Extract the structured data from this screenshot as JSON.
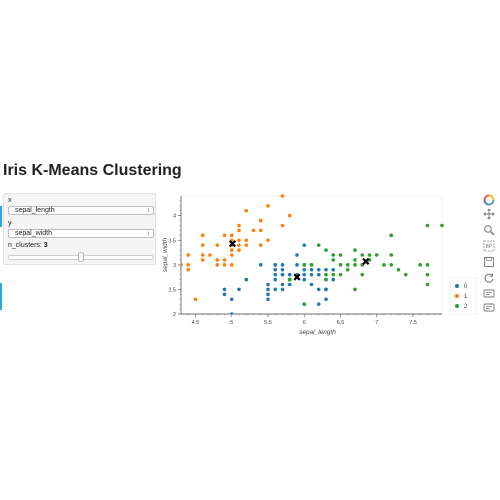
{
  "page": {
    "title": "Iris K-Means Clustering"
  },
  "controls": {
    "x_label": "x",
    "x_value": "sepal_length",
    "y_label": "y",
    "y_value": "sepal_width",
    "n_clusters_label": "n_clusters: ",
    "n_clusters_value": "3",
    "n_clusters_fraction": 0.5
  },
  "toolbar": {
    "icons": [
      "bokeh-logo-icon",
      "pan-icon",
      "zoom-icon",
      "box-zoom-icon",
      "save-icon",
      "reset-icon",
      "hover-icon",
      "hover-icon-2"
    ]
  },
  "colors": {
    "cluster0": "#1f77b4",
    "cluster1": "#ff7f0e",
    "cluster2": "#2ca02c",
    "centroid": "#000000"
  },
  "chart_data": {
    "type": "scatter",
    "xlabel": "sepal_length",
    "ylabel": "sepal_width",
    "xlim": [
      4.3,
      7.9
    ],
    "ylim": [
      2.0,
      4.4
    ],
    "xticks": [
      4.5,
      5,
      5.5,
      6,
      6.5,
      7,
      7.5
    ],
    "yticks": [
      2,
      2.5,
      3,
      3.5,
      4
    ],
    "legend_position": "right",
    "series": [
      {
        "name": "0",
        "color": "#1f77b4",
        "points": [
          [
            4.9,
            2.4
          ],
          [
            4.9,
            2.5
          ],
          [
            5.0,
            2.0
          ],
          [
            5.0,
            2.3
          ],
          [
            5.1,
            2.5
          ],
          [
            5.2,
            2.7
          ],
          [
            5.4,
            3.0
          ],
          [
            5.5,
            2.3
          ],
          [
            5.5,
            2.4
          ],
          [
            5.5,
            2.5
          ],
          [
            5.5,
            2.6
          ],
          [
            5.6,
            2.5
          ],
          [
            5.6,
            2.7
          ],
          [
            5.6,
            2.8
          ],
          [
            5.6,
            2.9
          ],
          [
            5.6,
            3.0
          ],
          [
            5.7,
            2.5
          ],
          [
            5.7,
            2.6
          ],
          [
            5.7,
            2.8
          ],
          [
            5.7,
            2.9
          ],
          [
            5.7,
            3.0
          ],
          [
            5.8,
            2.6
          ],
          [
            5.8,
            2.7
          ],
          [
            5.8,
            2.8
          ],
          [
            5.9,
            3.0
          ],
          [
            5.9,
            3.2
          ],
          [
            6.0,
            2.2
          ],
          [
            6.0,
            2.2
          ],
          [
            6.0,
            2.7
          ],
          [
            6.0,
            2.9
          ],
          [
            6.0,
            3.0
          ],
          [
            6.0,
            3.4
          ],
          [
            6.1,
            2.6
          ],
          [
            6.1,
            2.8
          ],
          [
            6.1,
            3.0
          ],
          [
            6.2,
            2.2
          ],
          [
            6.2,
            2.8
          ],
          [
            6.2,
            2.9
          ],
          [
            6.3,
            2.3
          ],
          [
            6.3,
            2.5
          ],
          [
            6.3,
            2.7
          ],
          [
            6.4,
            2.7
          ],
          [
            6.4,
            2.9
          ],
          [
            5.8,
            2.7
          ],
          [
            6.1,
            2.9
          ],
          [
            5.9,
            2.8
          ],
          [
            6.3,
            2.5
          ],
          [
            5.6,
            3.0
          ],
          [
            5.7,
            2.8
          ],
          [
            6.2,
            2.5
          ],
          [
            6.3,
            2.9
          ],
          [
            6.0,
            2.8
          ]
        ]
      },
      {
        "name": "1",
        "color": "#ff7f0e",
        "points": [
          [
            4.3,
            3.0
          ],
          [
            4.4,
            2.9
          ],
          [
            4.4,
            3.0
          ],
          [
            4.4,
            3.2
          ],
          [
            4.5,
            2.3
          ],
          [
            4.6,
            3.1
          ],
          [
            4.6,
            3.2
          ],
          [
            4.6,
            3.4
          ],
          [
            4.6,
            3.6
          ],
          [
            4.7,
            3.2
          ],
          [
            4.8,
            3.0
          ],
          [
            4.8,
            3.1
          ],
          [
            4.8,
            3.4
          ],
          [
            4.9,
            3.0
          ],
          [
            4.9,
            3.1
          ],
          [
            4.9,
            3.6
          ],
          [
            5.0,
            3.0
          ],
          [
            5.0,
            3.2
          ],
          [
            5.0,
            3.3
          ],
          [
            5.0,
            3.4
          ],
          [
            5.0,
            3.5
          ],
          [
            5.0,
            3.6
          ],
          [
            5.1,
            3.3
          ],
          [
            5.1,
            3.4
          ],
          [
            5.1,
            3.5
          ],
          [
            5.1,
            3.7
          ],
          [
            5.1,
            3.8
          ],
          [
            5.2,
            3.4
          ],
          [
            5.2,
            3.5
          ],
          [
            5.2,
            4.1
          ],
          [
            5.3,
            3.7
          ],
          [
            5.4,
            3.4
          ],
          [
            5.4,
            3.7
          ],
          [
            5.4,
            3.9
          ],
          [
            5.5,
            3.5
          ],
          [
            5.5,
            4.2
          ],
          [
            5.7,
            3.8
          ],
          [
            5.7,
            4.4
          ],
          [
            5.8,
            4.0
          ],
          [
            5.4,
            3.9
          ]
        ]
      },
      {
        "name": "2",
        "color": "#2ca02c",
        "points": [
          [
            5.8,
            2.7
          ],
          [
            6.0,
            2.2
          ],
          [
            6.0,
            3.0
          ],
          [
            6.1,
            3.0
          ],
          [
            6.2,
            3.4
          ],
          [
            6.3,
            2.7
          ],
          [
            6.3,
            2.8
          ],
          [
            6.3,
            3.3
          ],
          [
            6.4,
            2.8
          ],
          [
            6.4,
            3.1
          ],
          [
            6.4,
            3.2
          ],
          [
            6.5,
            2.8
          ],
          [
            6.5,
            3.0
          ],
          [
            6.5,
            3.2
          ],
          [
            6.6,
            2.9
          ],
          [
            6.6,
            3.0
          ],
          [
            6.7,
            2.5
          ],
          [
            6.7,
            3.0
          ],
          [
            6.7,
            3.1
          ],
          [
            6.7,
            3.3
          ],
          [
            6.8,
            2.8
          ],
          [
            6.8,
            3.0
          ],
          [
            6.8,
            3.2
          ],
          [
            6.9,
            3.1
          ],
          [
            6.9,
            3.2
          ],
          [
            7.0,
            3.2
          ],
          [
            7.1,
            3.0
          ],
          [
            7.2,
            3.0
          ],
          [
            7.2,
            3.2
          ],
          [
            7.2,
            3.6
          ],
          [
            7.3,
            2.9
          ],
          [
            7.4,
            2.8
          ],
          [
            7.6,
            3.0
          ],
          [
            7.7,
            2.6
          ],
          [
            7.7,
            2.8
          ],
          [
            7.7,
            3.0
          ],
          [
            7.7,
            3.8
          ],
          [
            7.9,
            3.8
          ]
        ]
      }
    ],
    "centroids": [
      [
        5.9,
        2.75
      ],
      [
        5.01,
        3.43
      ],
      [
        6.85,
        3.07
      ]
    ]
  }
}
